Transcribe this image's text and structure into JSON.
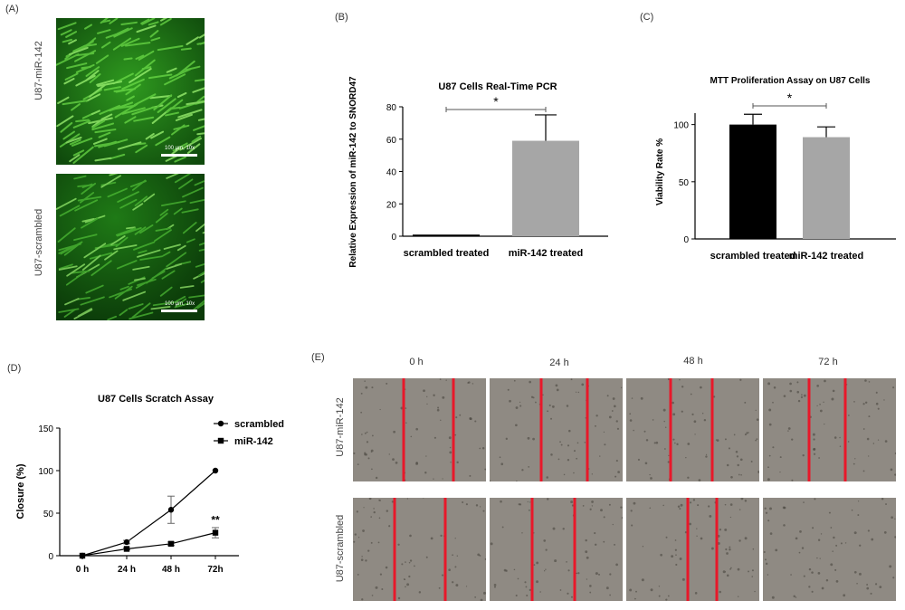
{
  "panels": {
    "A": {
      "label": "(A)",
      "images": [
        {
          "row_label": "U87-miR-142",
          "scale": "100 μm, 10x"
        },
        {
          "row_label": "U87-scrambled",
          "scale": "100 μm, 10x"
        }
      ],
      "colors": {
        "fluorescence": "#3fbf2a",
        "background": "#0d3a0b"
      }
    },
    "E": {
      "label": "(E)",
      "columns": [
        "0 h",
        "24 h",
        "48 h",
        "72 h"
      ],
      "rows": [
        "U87-miR-142",
        "U87-scrambled"
      ],
      "colors": {
        "tissue": "#8f8a83",
        "gap_line": "#e8182a"
      }
    }
  },
  "chart_data": [
    {
      "panel": "(B)",
      "type": "bar",
      "title": "U87 Cells Real-Time PCR",
      "xlabel": "",
      "ylabel": "Relative Expression of miR-142 to SNORD47",
      "categories": [
        "scrambled treated",
        "miR-142 treated"
      ],
      "values": [
        1,
        59
      ],
      "errors": [
        0,
        16
      ],
      "colors": [
        "#000000",
        "#a6a6a6"
      ],
      "ylim": [
        0,
        80
      ],
      "yticks": [
        "0",
        "20",
        "40",
        "60",
        "80"
      ],
      "significance": "*",
      "grid": false
    },
    {
      "panel": "(C)",
      "type": "bar",
      "title": "MTT Proliferation Assay on U87 Cells",
      "xlabel": "",
      "ylabel": "Viability Rate %",
      "categories": [
        "scrambled treated",
        "miR-142 treated"
      ],
      "values": [
        100,
        89
      ],
      "errors": [
        9,
        9
      ],
      "colors": [
        "#000000",
        "#a6a6a6"
      ],
      "ylim": [
        0,
        110
      ],
      "yticks": [
        "0",
        "50",
        "100"
      ],
      "significance": "*",
      "grid": false
    },
    {
      "panel": "(D)",
      "type": "line",
      "title": "U87 Cells Scratch Assay",
      "xlabel": "",
      "ylabel": "Closure (%)",
      "categories": [
        "0 h",
        "24 h",
        "48 h",
        "72h"
      ],
      "ylim": [
        0,
        150
      ],
      "yticks": [
        "0",
        "50",
        "100",
        "150"
      ],
      "legend_position": "top-right",
      "series": [
        {
          "name": "scrambled",
          "marker": "circle",
          "values": [
            0,
            16,
            54,
            100
          ],
          "errors": [
            0,
            2,
            16,
            0
          ]
        },
        {
          "name": "miR-142",
          "marker": "square",
          "values": [
            0,
            8,
            14,
            27
          ],
          "errors": [
            0,
            1,
            2,
            6
          ]
        }
      ],
      "annotation": "**",
      "grid": false
    }
  ]
}
